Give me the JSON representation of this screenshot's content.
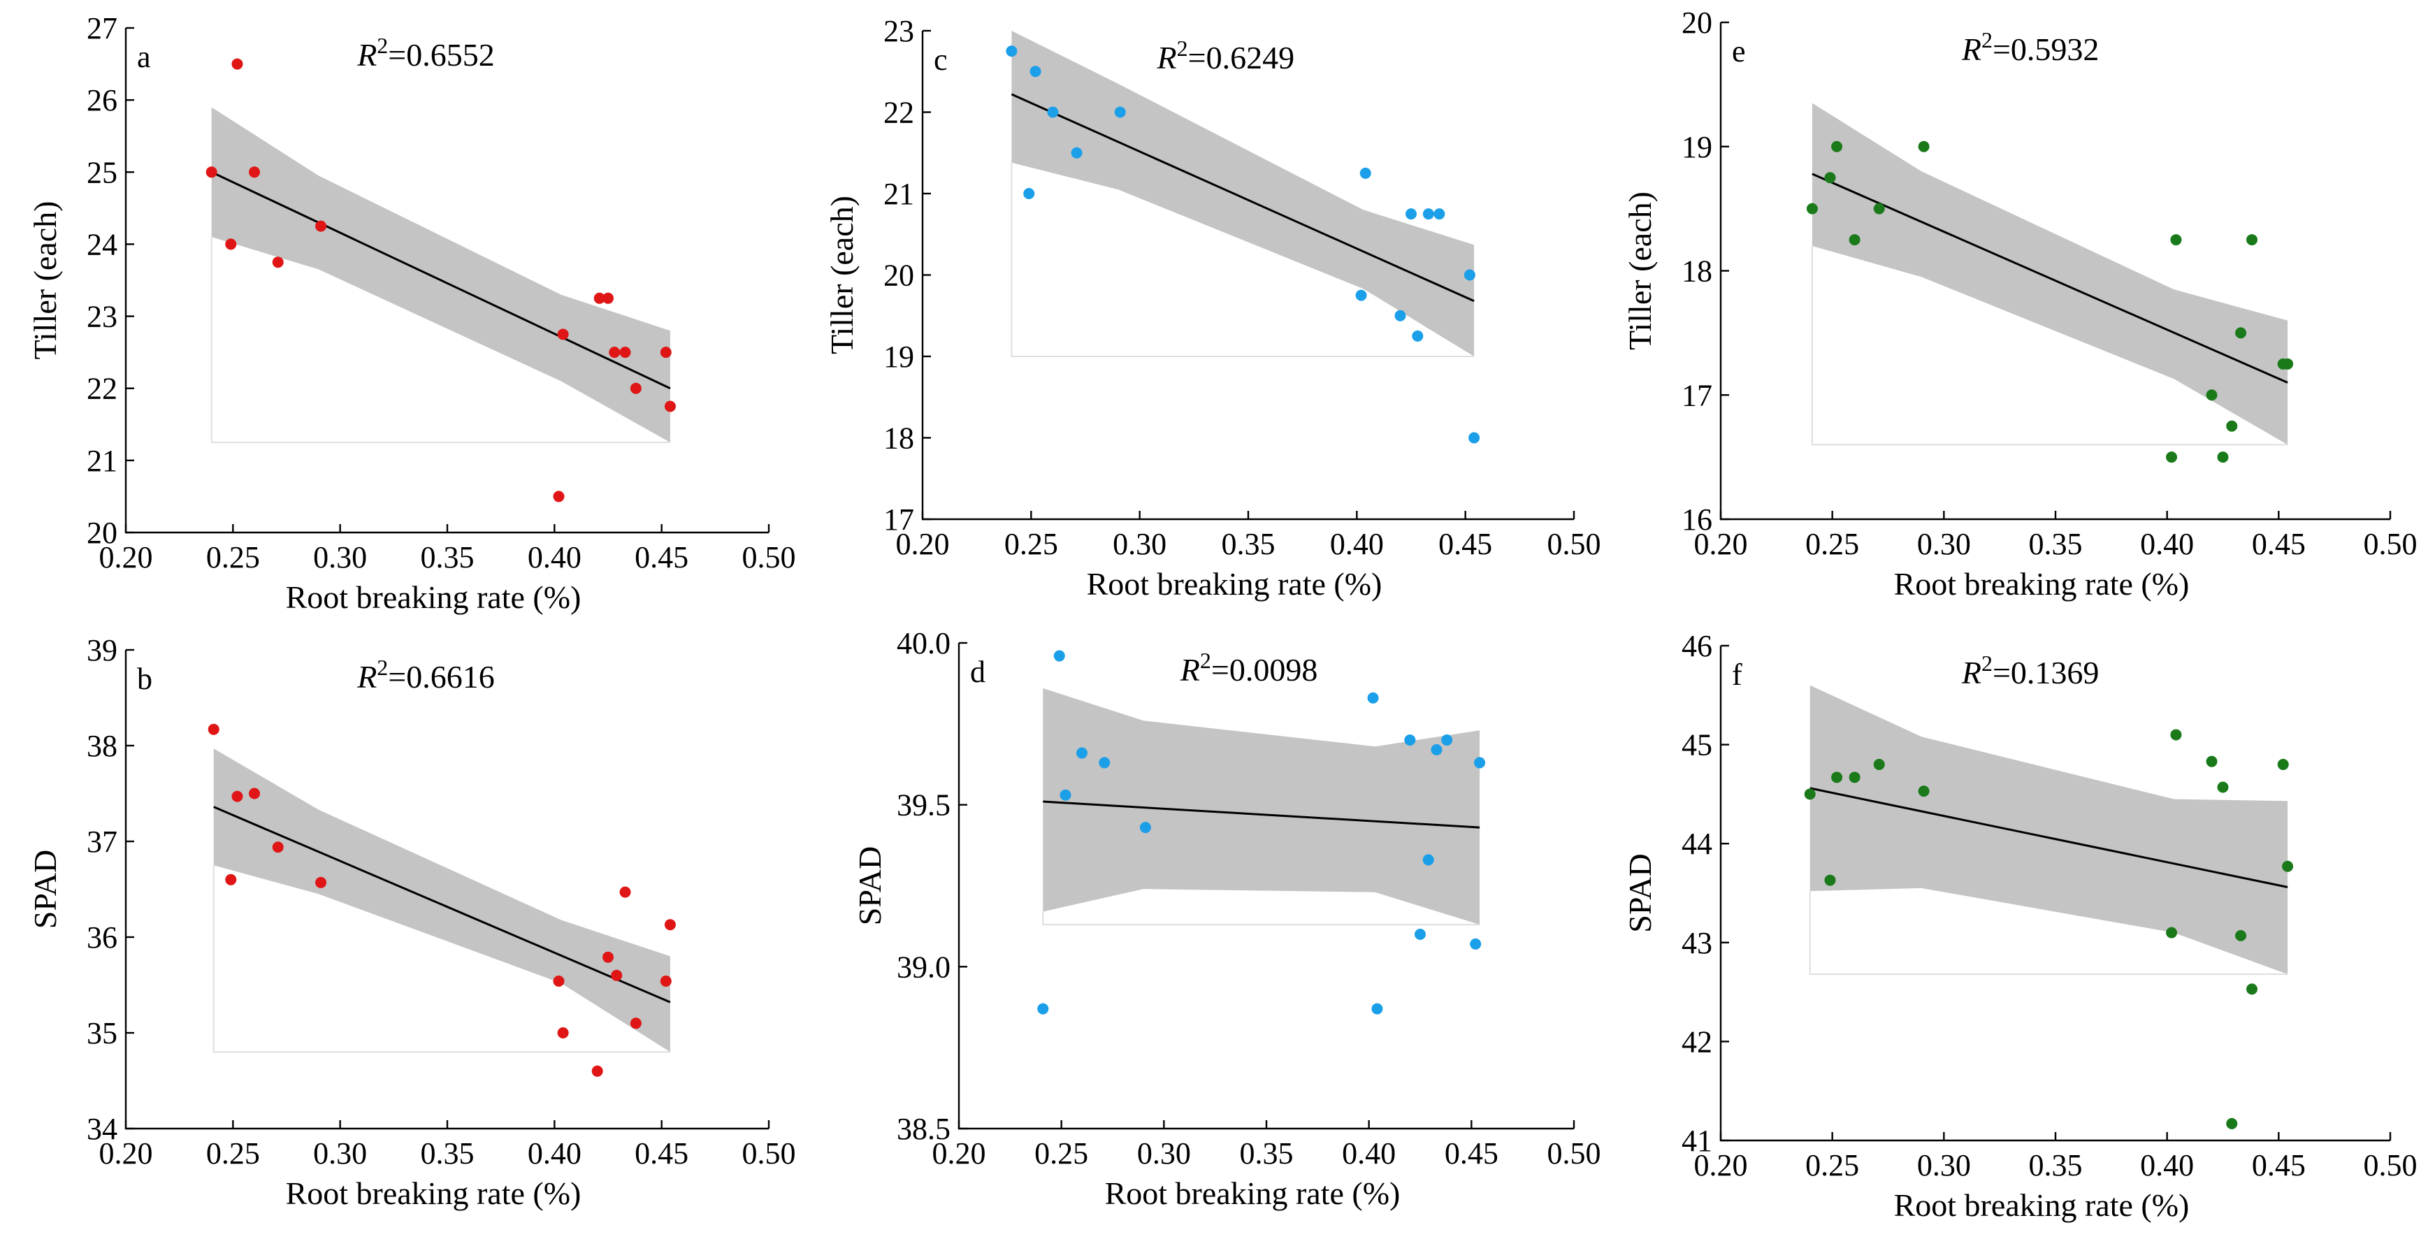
{
  "chart_data": [
    {
      "id": "a",
      "type": "scatter",
      "panel_label": "a",
      "r2_label": "R",
      "r2_sup": "2",
      "r2_value": "=0.6552",
      "xlabel": "Root breaking rate (%)",
      "ylabel": "Tiller (each)",
      "xlim": [
        0.2,
        0.5
      ],
      "ylim": [
        20,
        27
      ],
      "xticks": [
        "0.20",
        "0.25",
        "0.30",
        "0.35",
        "0.40",
        "0.45",
        "0.50"
      ],
      "yticks": [
        "20",
        "21",
        "22",
        "23",
        "24",
        "25",
        "26",
        "27"
      ],
      "point_color": "#e01515",
      "x": [
        0.24,
        0.249,
        0.252,
        0.26,
        0.271,
        0.291,
        0.402,
        0.404,
        0.421,
        0.425,
        0.428,
        0.433,
        0.438,
        0.452,
        0.454
      ],
      "y": [
        25.0,
        24.0,
        26.5,
        25.0,
        23.75,
        24.25,
        20.5,
        22.75,
        23.25,
        23.25,
        22.5,
        22.5,
        22.0,
        22.5,
        21.75
      ],
      "fit": {
        "x": [
          0.24,
          0.454
        ],
        "y": [
          25.0,
          22.0
        ]
      },
      "band": {
        "x": [
          0.24,
          0.29,
          0.403,
          0.454
        ],
        "upper": [
          25.9,
          24.95,
          23.3,
          22.8
        ],
        "lower": [
          24.1,
          23.65,
          22.1,
          21.25
        ]
      }
    },
    {
      "id": "b",
      "type": "scatter",
      "panel_label": "b",
      "r2_label": "R",
      "r2_sup": "2",
      "r2_value": "=0.6616",
      "xlabel": "Root breaking rate (%)",
      "ylabel": "SPAD",
      "xlim": [
        0.2,
        0.5
      ],
      "ylim": [
        34,
        39
      ],
      "xticks": [
        "0.20",
        "0.25",
        "0.30",
        "0.35",
        "0.40",
        "0.45",
        "0.50"
      ],
      "yticks": [
        "34",
        "35",
        "36",
        "37",
        "38",
        "39"
      ],
      "point_color": "#e01515",
      "x": [
        0.241,
        0.249,
        0.252,
        0.26,
        0.271,
        0.291,
        0.402,
        0.404,
        0.42,
        0.425,
        0.429,
        0.433,
        0.438,
        0.452,
        0.454
      ],
      "y": [
        38.17,
        36.6,
        37.47,
        37.5,
        36.94,
        36.57,
        35.54,
        35.0,
        34.6,
        35.79,
        35.6,
        36.47,
        35.1,
        35.54,
        36.13
      ],
      "fit": {
        "x": [
          0.241,
          0.454
        ],
        "y": [
          37.36,
          35.32
        ]
      },
      "band": {
        "x": [
          0.241,
          0.29,
          0.403,
          0.454
        ],
        "upper": [
          37.97,
          37.33,
          36.18,
          35.8
        ],
        "lower": [
          36.75,
          36.45,
          35.52,
          34.8
        ]
      }
    },
    {
      "id": "c",
      "type": "scatter",
      "panel_label": "c",
      "r2_label": "R",
      "r2_sup": "2",
      "r2_value": "=0.6249",
      "xlabel": "Root breaking rate (%)",
      "ylabel": "Tiller (each)",
      "xlim": [
        0.2,
        0.5
      ],
      "ylim": [
        17,
        23
      ],
      "xticks": [
        "0.20",
        "0.25",
        "0.30",
        "0.35",
        "0.40",
        "0.45",
        "0.50"
      ],
      "yticks": [
        "17",
        "18",
        "19",
        "20",
        "21",
        "22",
        "23"
      ],
      "point_color": "#1a9fe8",
      "x": [
        0.241,
        0.249,
        0.252,
        0.26,
        0.271,
        0.291,
        0.402,
        0.404,
        0.42,
        0.425,
        0.428,
        0.433,
        0.438,
        0.452,
        0.454
      ],
      "y": [
        22.75,
        21.0,
        22.5,
        22.0,
        21.5,
        22.0,
        19.75,
        21.25,
        19.5,
        20.75,
        19.25,
        20.75,
        20.75,
        20.0,
        18.0
      ],
      "fit": {
        "x": [
          0.241,
          0.454
        ],
        "y": [
          22.22,
          19.68
        ]
      },
      "band": {
        "x": [
          0.241,
          0.29,
          0.403,
          0.454
        ],
        "upper": [
          23.0,
          22.35,
          20.8,
          20.37
        ],
        "lower": [
          21.38,
          21.05,
          19.83,
          19.0
        ]
      }
    },
    {
      "id": "d",
      "type": "scatter",
      "panel_label": "d",
      "r2_label": "R",
      "r2_sup": "2",
      "r2_value": "=0.0098",
      "xlabel": "Root breaking rate (%)",
      "ylabel": "SPAD",
      "xlim": [
        0.2,
        0.5
      ],
      "ylim": [
        38.5,
        40.0
      ],
      "xticks": [
        "0.20",
        "0.25",
        "0.30",
        "0.35",
        "0.40",
        "0.45",
        "0.50"
      ],
      "yticks": [
        "38.5",
        "39.0",
        "39.5",
        "40.0"
      ],
      "point_color": "#1a9fe8",
      "x": [
        0.241,
        0.249,
        0.252,
        0.26,
        0.271,
        0.291,
        0.402,
        0.404,
        0.42,
        0.425,
        0.429,
        0.433,
        0.438,
        0.452,
        0.454
      ],
      "y": [
        38.87,
        39.96,
        39.53,
        39.66,
        39.63,
        39.43,
        39.83,
        38.87,
        39.7,
        39.1,
        39.33,
        39.67,
        39.7,
        39.07,
        39.63
      ],
      "fit": {
        "x": [
          0.241,
          0.454
        ],
        "y": [
          39.51,
          39.43
        ]
      },
      "band": {
        "x": [
          0.241,
          0.29,
          0.403,
          0.454
        ],
        "upper": [
          39.86,
          39.76,
          39.68,
          39.73
        ],
        "lower": [
          39.17,
          39.24,
          39.23,
          39.13
        ]
      }
    },
    {
      "id": "e",
      "type": "scatter",
      "panel_label": "e",
      "r2_label": "R",
      "r2_sup": "2",
      "r2_value": "=0.5932",
      "xlabel": "Root breaking rate (%)",
      "ylabel": "Tiller (each)",
      "xlim": [
        0.2,
        0.5
      ],
      "ylim": [
        16,
        20
      ],
      "xticks": [
        "0.20",
        "0.25",
        "0.30",
        "0.35",
        "0.40",
        "0.45",
        "0.50"
      ],
      "yticks": [
        "16",
        "17",
        "18",
        "19",
        "20"
      ],
      "point_color": "#1a7a1a",
      "x": [
        0.241,
        0.249,
        0.252,
        0.26,
        0.271,
        0.291,
        0.402,
        0.404,
        0.42,
        0.425,
        0.429,
        0.433,
        0.438,
        0.452,
        0.454
      ],
      "y": [
        18.5,
        18.75,
        19.0,
        18.25,
        18.5,
        19.0,
        16.5,
        18.25,
        17.0,
        16.5,
        16.75,
        17.5,
        18.25,
        17.25,
        17.25
      ],
      "fit": {
        "x": [
          0.241,
          0.454
        ],
        "y": [
          18.78,
          17.1
        ]
      },
      "band": {
        "x": [
          0.241,
          0.29,
          0.403,
          0.454
        ],
        "upper": [
          19.35,
          18.8,
          17.85,
          17.6
        ],
        "lower": [
          18.2,
          17.95,
          17.13,
          16.6
        ]
      }
    },
    {
      "id": "f",
      "type": "scatter",
      "panel_label": "f",
      "r2_label": "R",
      "r2_sup": "2",
      "r2_value": "=0.1369",
      "xlabel": "Root breaking rate (%)",
      "ylabel": "SPAD",
      "xlim": [
        0.2,
        0.5
      ],
      "ylim": [
        41,
        46
      ],
      "xticks": [
        "0.20",
        "0.25",
        "0.30",
        "0.35",
        "0.40",
        "0.45",
        "0.50"
      ],
      "yticks": [
        "41",
        "42",
        "43",
        "44",
        "45",
        "46"
      ],
      "point_color": "#1a7a1a",
      "x": [
        0.24,
        0.249,
        0.252,
        0.26,
        0.271,
        0.291,
        0.402,
        0.404,
        0.42,
        0.425,
        0.429,
        0.433,
        0.438,
        0.452,
        0.454
      ],
      "y": [
        44.5,
        43.63,
        44.67,
        44.67,
        44.8,
        44.53,
        43.1,
        45.1,
        44.83,
        44.57,
        41.17,
        43.07,
        42.53,
        44.8,
        43.77
      ],
      "fit": {
        "x": [
          0.24,
          0.454
        ],
        "y": [
          44.56,
          43.56
        ]
      },
      "band": {
        "x": [
          0.24,
          0.29,
          0.403,
          0.454
        ],
        "upper": [
          45.6,
          45.08,
          44.45,
          44.43
        ],
        "lower": [
          43.52,
          43.55,
          43.1,
          42.68
        ]
      }
    }
  ]
}
